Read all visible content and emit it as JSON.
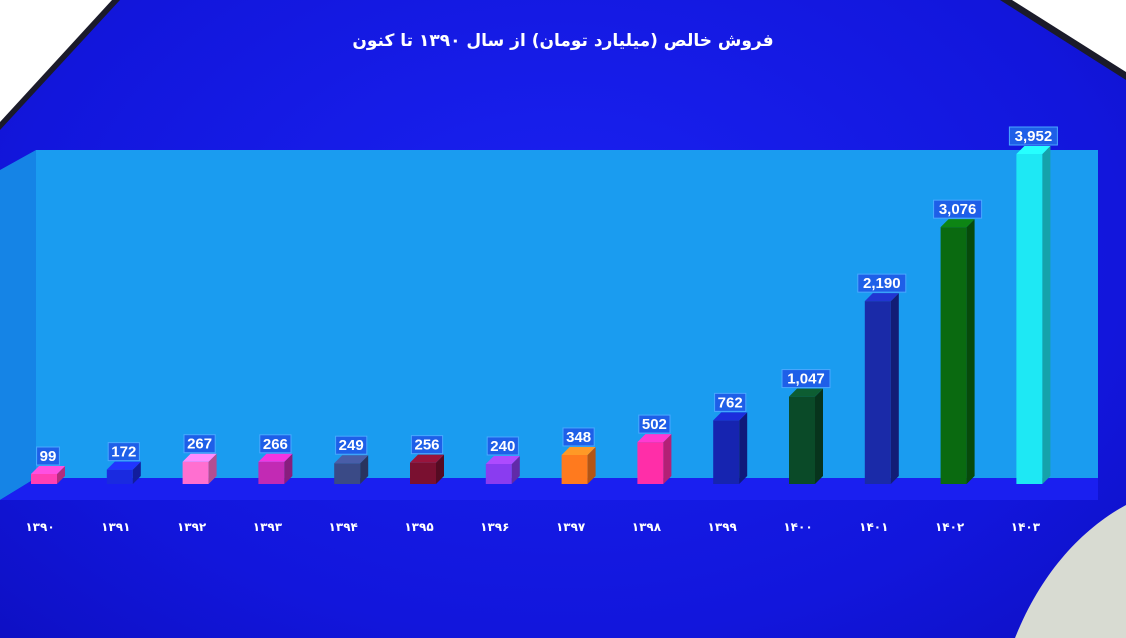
{
  "chart_data": {
    "type": "bar",
    "title": "فروش خالص (میلیارد تومان) از سال ۱۳۹۰ تا کنون",
    "categories": [
      "۱۳۹۰",
      "۱۳۹۱",
      "۱۳۹۲",
      "۱۳۹۳",
      "۱۳۹۴",
      "۱۳۹۵",
      "۱۳۹۶",
      "۱۳۹۷",
      "۱۳۹۸",
      "۱۳۹۹",
      "۱۴۰۰",
      "۱۴۰۱",
      "۱۴۰۲",
      "۱۴۰۳"
    ],
    "values": [
      99,
      172,
      267,
      266,
      249,
      256,
      240,
      348,
      502,
      762,
      1047,
      2190,
      3076,
      3952
    ],
    "value_labels": [
      "99",
      "172",
      "267",
      "266",
      "249",
      "256",
      "240",
      "348",
      "502",
      "762",
      "1,047",
      "2,190",
      "3,076",
      "3,952"
    ],
    "colors": [
      "#ff3fb4",
      "#1a2ae0",
      "#ff6fd0",
      "#c22ab4",
      "#3a4a86",
      "#7a1030",
      "#8a3cf0",
      "#ff7a1e",
      "#ff2ea8",
      "#1624b0",
      "#0a4a28",
      "#1a2aa8",
      "#0a6a10",
      "#1ee8f4"
    ],
    "ylim": [
      0,
      4000
    ],
    "grid": false,
    "legend": "none"
  }
}
